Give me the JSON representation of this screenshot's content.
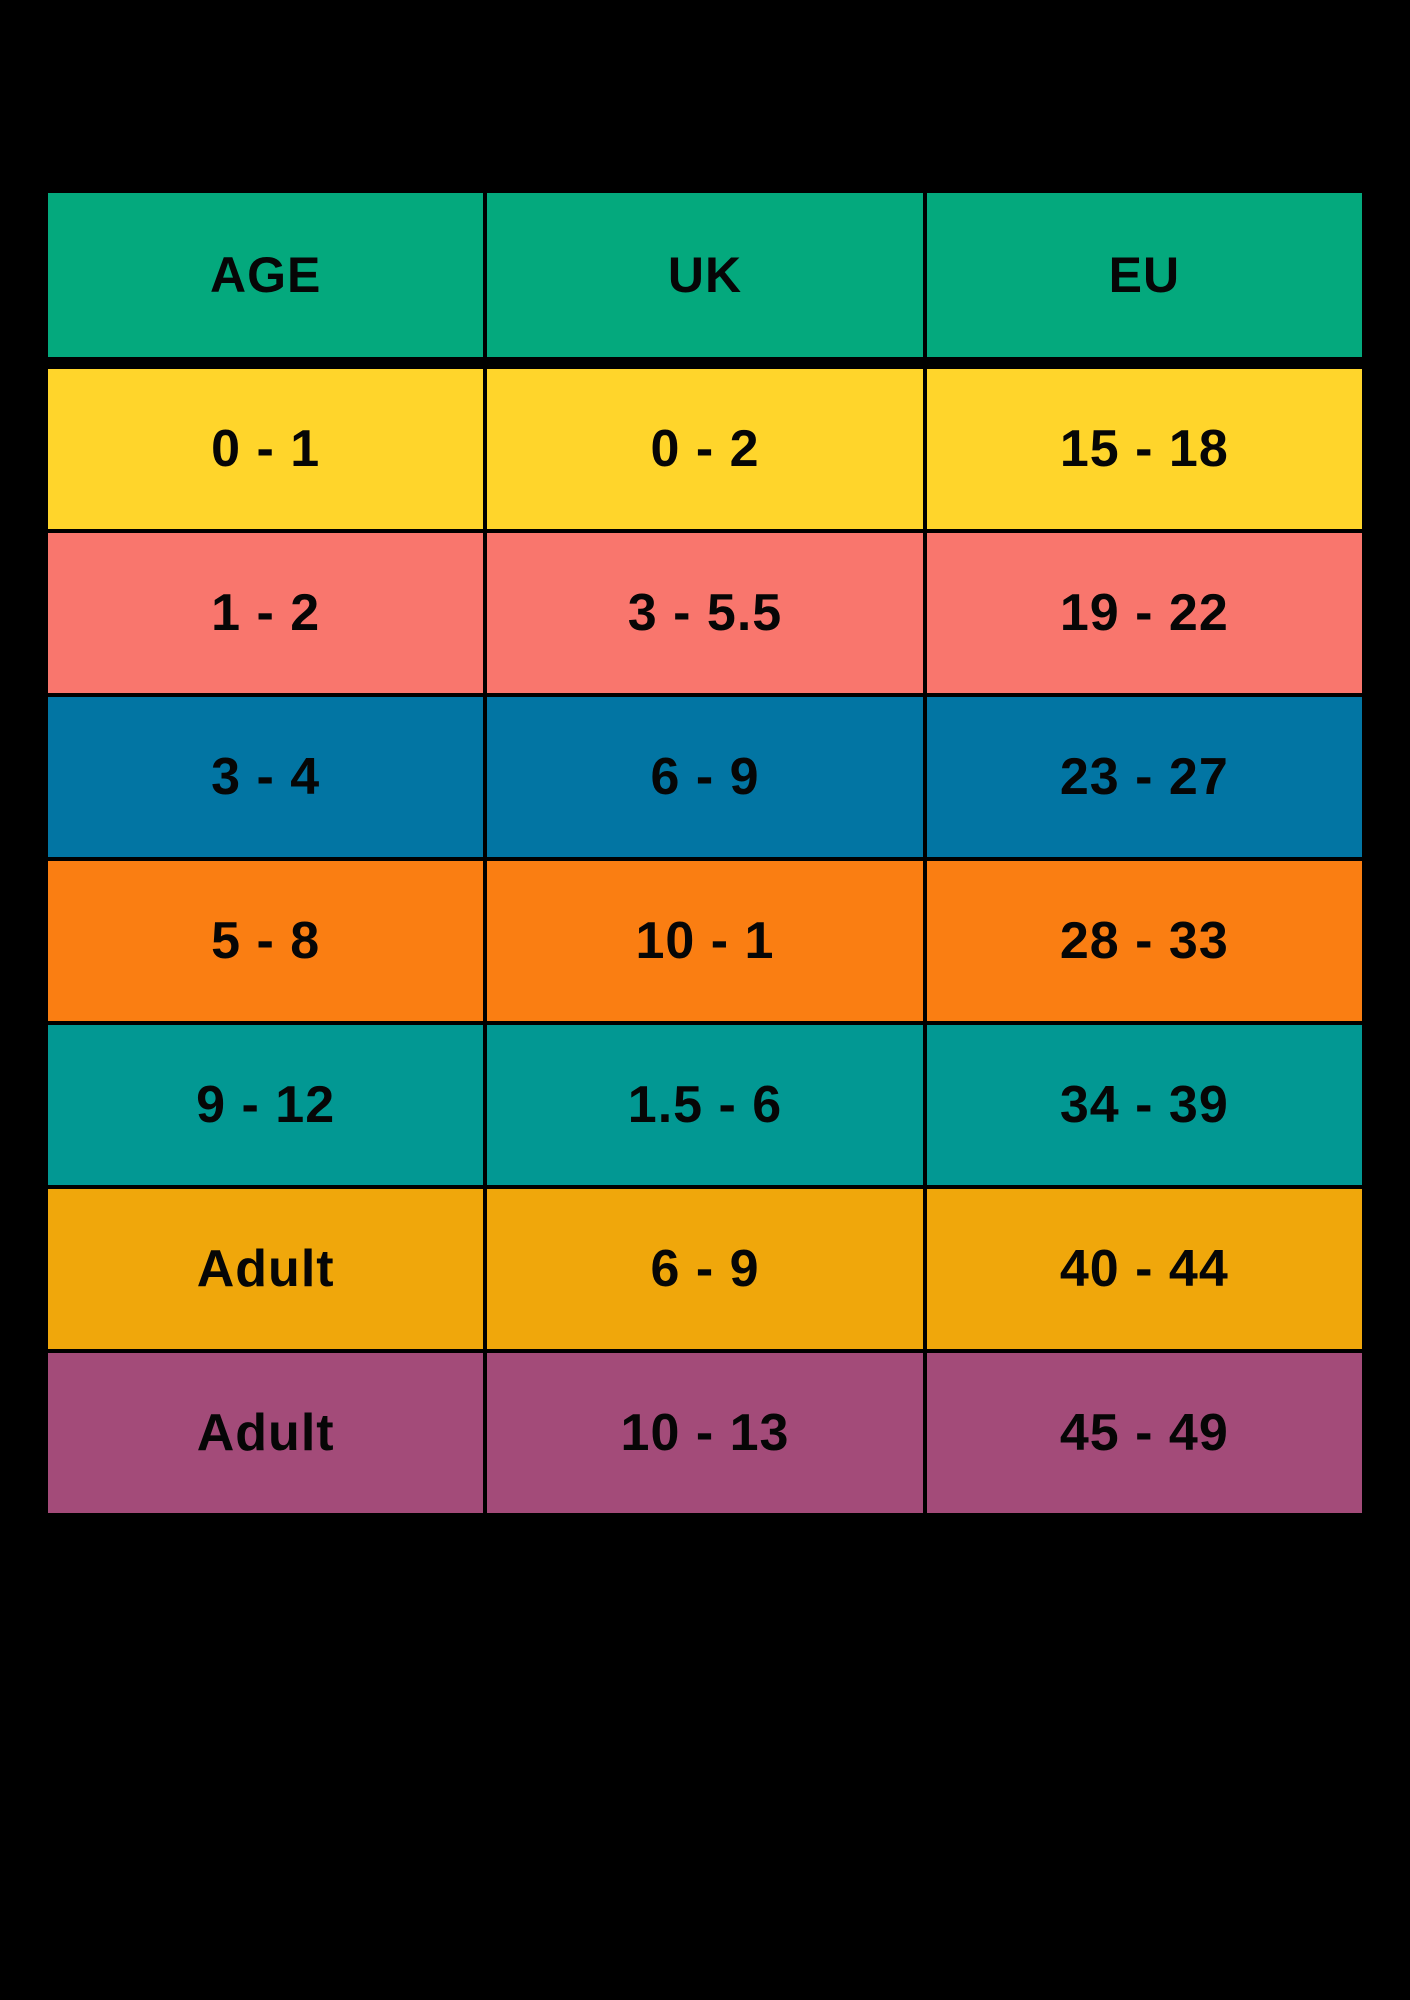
{
  "page": {
    "background_color": "#000000",
    "text_color": "#060606"
  },
  "table": {
    "header_color": "#04A97D",
    "columns": [
      {
        "key": "age",
        "label": "AGE"
      },
      {
        "key": "uk",
        "label": "UK"
      },
      {
        "key": "eu",
        "label": "EU"
      }
    ],
    "rows": [
      {
        "age": "0 - 1",
        "uk": "0 - 2",
        "eu": "15 - 18",
        "color": "#FFD52B"
      },
      {
        "age": "1 - 2",
        "uk": "3 - 5.5",
        "eu": "19 - 22",
        "color": "#F9766D"
      },
      {
        "age": "3 - 4",
        "uk": "6 - 9",
        "eu": "23 - 27",
        "color": "#0275A3"
      },
      {
        "age": "5 - 8",
        "uk": "10 - 1",
        "eu": "28 - 33",
        "color": "#FA7E12"
      },
      {
        "age": "9 - 12",
        "uk": "1.5 - 6",
        "eu": "34 - 39",
        "color": "#029893"
      },
      {
        "age": "Adult",
        "uk": "6 - 9",
        "eu": "40 - 44",
        "color": "#F0A70B"
      },
      {
        "age": "Adult",
        "uk": "10 - 13",
        "eu": "45 - 49",
        "color": "#A34B79"
      }
    ]
  },
  "chart_data": {
    "type": "table",
    "title": "",
    "columns": [
      "AGE",
      "UK",
      "EU"
    ],
    "rows": [
      [
        "0 - 1",
        "0 - 2",
        "15 - 18"
      ],
      [
        "1 - 2",
        "3 - 5.5",
        "19 - 22"
      ],
      [
        "3 - 4",
        "6 - 9",
        "23 - 27"
      ],
      [
        "5 - 8",
        "10 - 1",
        "28 - 33"
      ],
      [
        "9 - 12",
        "1.5 - 6",
        "34 - 39"
      ],
      [
        "Adult",
        "6 - 9",
        "40 - 44"
      ],
      [
        "Adult",
        "10 - 13",
        "45 - 49"
      ]
    ],
    "row_colors": [
      "#FFD52B",
      "#F9766D",
      "#0275A3",
      "#FA7E12",
      "#029893",
      "#F0A70B",
      "#A34B79"
    ],
    "header_color": "#04A97D",
    "legend_position": "none",
    "grid": false
  }
}
